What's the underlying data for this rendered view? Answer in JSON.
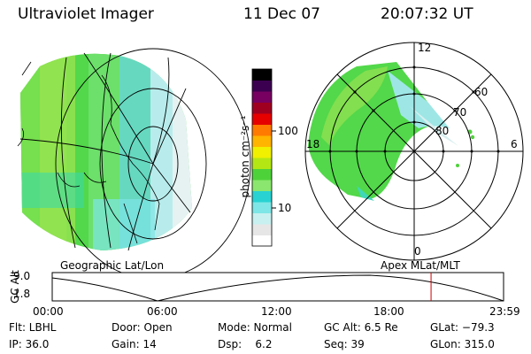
{
  "header": {
    "instrument": "Ultraviolet Imager",
    "date": "11 Dec 07",
    "time": "20:07:32 UT"
  },
  "colorbar": {
    "label": "photon cm⁻²s⁻¹",
    "ticks": [
      "100",
      "10"
    ],
    "colors": [
      "#ffffff",
      "#e6e6e6",
      "#c8f0f0",
      "#7ee6e6",
      "#28d2d2",
      "#8ae66e",
      "#4ed23a",
      "#b4e614",
      "#f0f000",
      "#ffb400",
      "#ff7a00",
      "#e60000",
      "#a00020",
      "#780060",
      "#3c0050",
      "#000000"
    ]
  },
  "left_map": {
    "caption": "Geographic Lat/Lon"
  },
  "right_map": {
    "caption": "Apex  MLat/MLT",
    "mlt_labels": [
      "12",
      "18",
      "6",
      "0"
    ],
    "lat_labels": [
      "60",
      "70",
      "80"
    ]
  },
  "timeline": {
    "ylabel": "GC Alt",
    "yticks": [
      "9.0",
      "1.8"
    ],
    "xticks": [
      "00:00",
      "06:00",
      "12:00",
      "18:00",
      "23:59"
    ],
    "current_time_hours": 20.13,
    "marker_color": "#cc0000"
  },
  "footer": {
    "col1": [
      "Flt: LBHL",
      "IP: 36.0"
    ],
    "col2": [
      "Door: Open",
      "Gain: 14"
    ],
    "col3": [
      "Mode: Normal",
      "Dsp:    6.2"
    ],
    "col4": [
      "GC Alt: 6.5 Re",
      "Seq: 39"
    ],
    "col5": [
      "GLat: −79.3",
      "GLon: 315.0"
    ]
  }
}
